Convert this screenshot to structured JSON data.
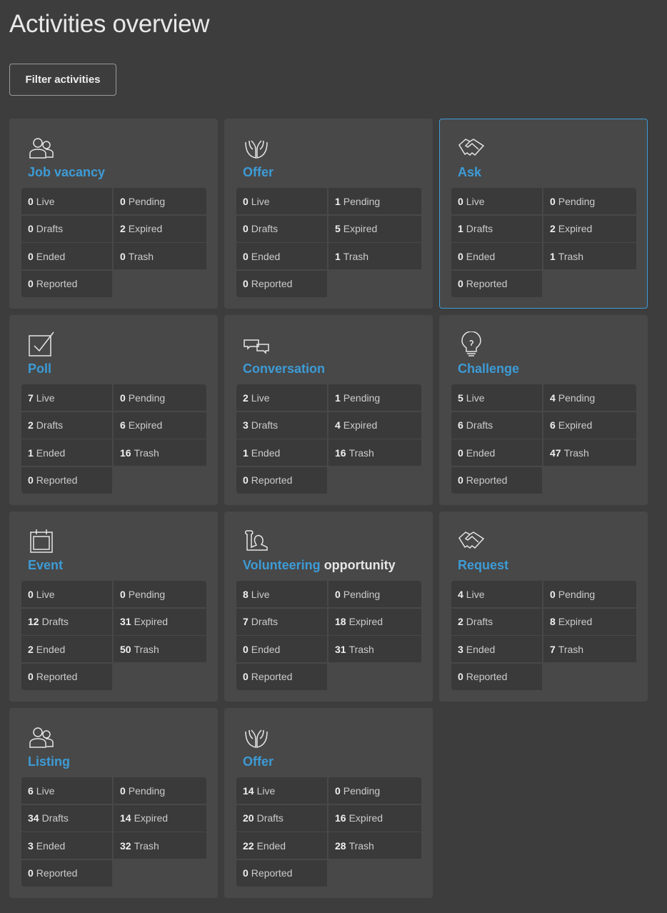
{
  "page": {
    "title": "Activities overview",
    "filter_label": "Filter activities"
  },
  "labels": {
    "live": "Live",
    "pending": "Pending",
    "drafts": "Drafts",
    "expired": "Expired",
    "ended": "Ended",
    "trash": "Trash",
    "reported": "Reported"
  },
  "accent": "#3d9bd6",
  "cards": [
    {
      "title": "Job vacancy",
      "title_rest": "",
      "icon": "people-icon",
      "selected": false,
      "live": 0,
      "pending": 0,
      "drafts": 0,
      "expired": 2,
      "ended": 0,
      "trash": 0,
      "reported": 0
    },
    {
      "title": "Offer",
      "title_rest": "",
      "icon": "open-hands-icon",
      "selected": false,
      "live": 0,
      "pending": 1,
      "drafts": 0,
      "expired": 5,
      "ended": 0,
      "trash": 1,
      "reported": 0
    },
    {
      "title": "Ask",
      "title_rest": "",
      "icon": "handshake-icon",
      "selected": true,
      "live": 0,
      "pending": 0,
      "drafts": 1,
      "expired": 2,
      "ended": 0,
      "trash": 1,
      "reported": 0
    },
    {
      "title": "Poll",
      "title_rest": "",
      "icon": "checkbox-icon",
      "selected": false,
      "live": 7,
      "pending": 0,
      "drafts": 2,
      "expired": 6,
      "ended": 1,
      "trash": 16,
      "reported": 0
    },
    {
      "title": "Conversation",
      "title_rest": "",
      "icon": "chat-bubbles-icon",
      "selected": false,
      "live": 2,
      "pending": 1,
      "drafts": 3,
      "expired": 4,
      "ended": 1,
      "trash": 16,
      "reported": 0
    },
    {
      "title": "Challenge",
      "title_rest": "",
      "icon": "lightbulb-icon",
      "selected": false,
      "live": 5,
      "pending": 4,
      "drafts": 6,
      "expired": 6,
      "ended": 0,
      "trash": 47,
      "reported": 0
    },
    {
      "title": "Event",
      "title_rest": "",
      "icon": "calendar-icon",
      "selected": false,
      "live": 0,
      "pending": 0,
      "drafts": 12,
      "expired": 31,
      "ended": 2,
      "trash": 50,
      "reported": 0
    },
    {
      "title": "Volunteering",
      "title_rest": "opportunity",
      "icon": "raised-hand-icon",
      "selected": false,
      "live": 8,
      "pending": 0,
      "drafts": 7,
      "expired": 18,
      "ended": 0,
      "trash": 31,
      "reported": 0
    },
    {
      "title": "Request",
      "title_rest": "",
      "icon": "handshake-icon",
      "selected": false,
      "live": 4,
      "pending": 0,
      "drafts": 2,
      "expired": 8,
      "ended": 3,
      "trash": 7,
      "reported": 0
    },
    {
      "title": "Listing",
      "title_rest": "",
      "icon": "people-icon",
      "selected": false,
      "live": 6,
      "pending": 0,
      "drafts": 34,
      "expired": 14,
      "ended": 3,
      "trash": 32,
      "reported": 0
    },
    {
      "title": "Offer",
      "title_rest": "",
      "icon": "open-hands-icon",
      "selected": false,
      "live": 14,
      "pending": 0,
      "drafts": 20,
      "expired": 16,
      "ended": 22,
      "trash": 28,
      "reported": 0
    }
  ]
}
